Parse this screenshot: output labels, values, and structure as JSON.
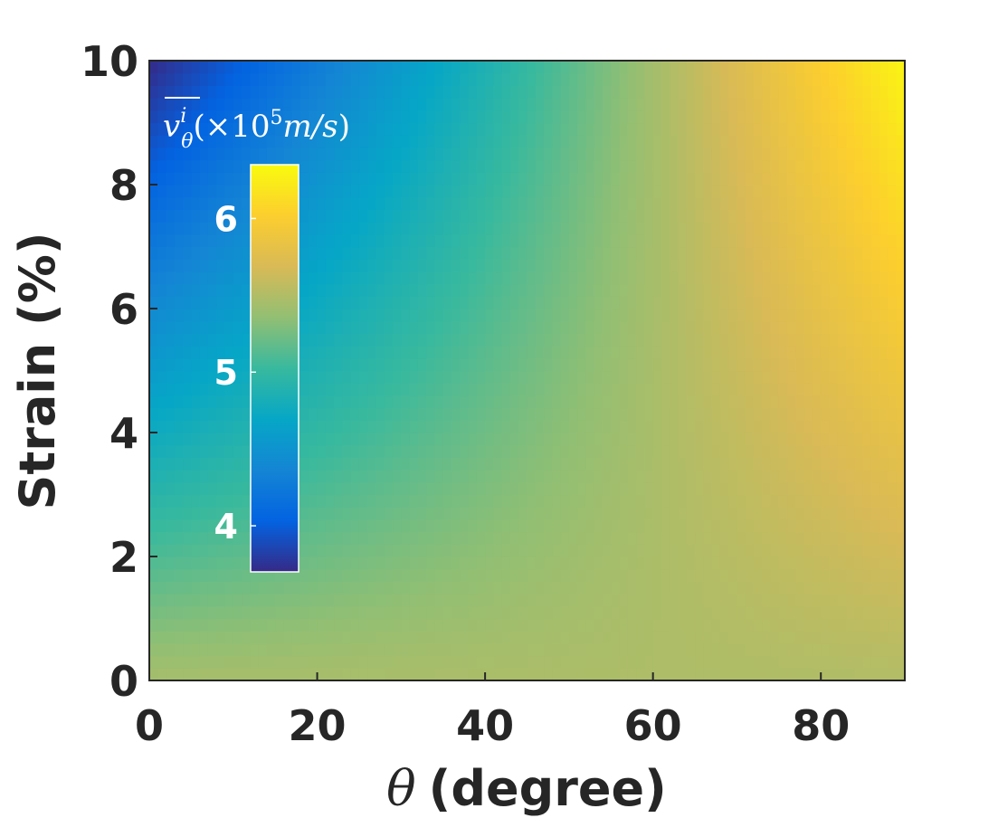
{
  "chart_data": {
    "type": "heatmap",
    "title": "",
    "xlabel": {
      "symbol": "θ",
      "text": "(degree)"
    },
    "ylabel": "Strain (%)",
    "xlim": [
      0,
      90
    ],
    "ylim": [
      0,
      10
    ],
    "xticks": [
      0,
      20,
      40,
      60,
      80
    ],
    "yticks": [
      0,
      2,
      4,
      6,
      8,
      10
    ],
    "grid": false,
    "colormap": "parula",
    "colormap_stops": [
      "#352a87",
      "#0363e1",
      "#1485d4",
      "#06a7c6",
      "#38b99e",
      "#92bf73",
      "#d9ba56",
      "#fcce2e",
      "#f9fb0e"
    ],
    "z_at_corners": {
      "theta0_strain0": 5.45,
      "theta0_strain10": 3.7,
      "theta90_strain0": 5.5,
      "theta90_strain10": 6.3
    },
    "colorbar": {
      "title_parts": {
        "var": "v",
        "sup": "i",
        "sub": "θ",
        "open": "(×10",
        "exp": "5",
        "unit": "m/s",
        "close": ")"
      },
      "range": [
        3.7,
        6.35
      ],
      "ticks": [
        4,
        5,
        6
      ],
      "location": "inside, upper-left"
    }
  }
}
